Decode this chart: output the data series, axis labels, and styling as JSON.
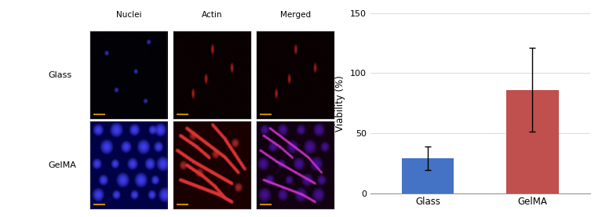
{
  "bar_categories": [
    "Glass",
    "GelMA"
  ],
  "bar_values": [
    29,
    86
  ],
  "bar_errors_up": [
    10,
    35
  ],
  "bar_errors_down": [
    10,
    35
  ],
  "bar_colors": [
    "#4472C4",
    "#C0504D"
  ],
  "ylabel": "Viability (%)",
  "ylim": [
    0,
    150
  ],
  "yticks": [
    0,
    50,
    100,
    150
  ],
  "figure_width": 7.67,
  "figure_height": 2.77,
  "col_labels": [
    "Nuclei",
    "Actin",
    "Merged"
  ],
  "row_labels": [
    "Glass",
    "GelMA"
  ],
  "cell_bg": [
    [
      "#000005",
      "#080000",
      "#080000"
    ],
    [
      "#000044",
      "#180000",
      "#100010"
    ]
  ],
  "cell_dot_colors": [
    [
      "#3333CC",
      "#CC2222",
      "#CC2222"
    ],
    [
      "#4444FF",
      "#DD3333",
      "#CC33CC"
    ]
  ],
  "scale_bar_color": "#CC8800"
}
